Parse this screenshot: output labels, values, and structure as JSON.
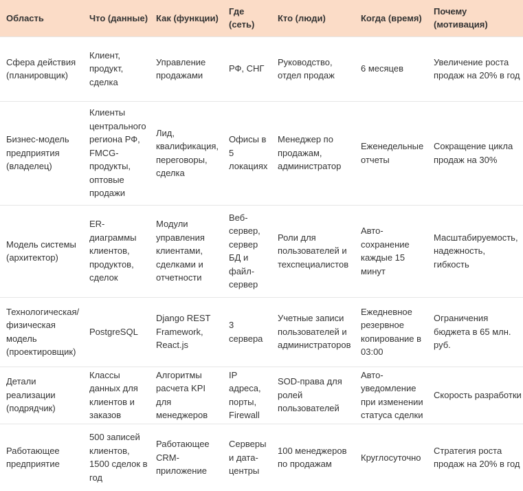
{
  "table": {
    "headers": [
      "Область",
      "Что (данные)",
      "Как (функции)",
      "Где (сеть)",
      "Кто (люди)",
      "Когда (время)",
      "Почему (мотивация)"
    ],
    "rows": [
      [
        "Сфера действия (планировщик)",
        "Клиент, продукт, сделка",
        "Управление продажами",
        "РФ, СНГ",
        "Руководство, отдел продаж",
        "6 месяцев",
        "Увеличение роста продаж на 20% в год"
      ],
      [
        "Бизнес-модель предприятия (владелец)",
        "Клиенты центрального региона РФ, FMCG-продукты, оптовые продажи",
        "Лид, квалификация, переговоры, сделка",
        "Офисы в 5 локациях",
        "Менеджер по продажам, администратор",
        "Еженедельные отчеты",
        "Сокращение цикла продаж на 30%"
      ],
      [
        "Модель системы (архитектор)",
        "ER-диаграммы клиентов, продуктов, сделок",
        "Модули управления клиентами, сделками и отчетности",
        "Веб-сервер, сервер БД и файл-сервер",
        "Роли для пользователей и техспециалистов",
        "Авто-сохранение каждые 15 минут",
        "Масштабируемость, надежность, гибкость"
      ],
      [
        "Технологическая/ физическая модель (проектировщик)",
        "PostgreSQL",
        "Django REST Framework, React.js",
        "3 сервера",
        "Учетные записи пользователей и администраторов",
        "Ежедневное резервное копирование в 03:00",
        "Ограничения бюджета в 65 млн. руб."
      ],
      [
        "Детали реализации (подрядчик)",
        "Классы данных для клиентов и заказов",
        "Алгоритмы расчета KPI для менеджеров",
        "IP адреса, порты, Firewall",
        "SOD-права для ролей пользователей",
        "Авто-уведомление при изменении статуса сделки",
        "Скорость разработки"
      ],
      [
        "Работающее предприятие",
        "500 записей клиентов, 1500 сделок в год",
        "Работающее CRM-приложение",
        "Серверы и дата-центры",
        "100 менеджеров по продажам",
        "Круглосуточно",
        "Стратегия роста продаж на 20% в год"
      ]
    ]
  },
  "colors": {
    "header_background": "#fbdcc7",
    "row_divider": "#e6e6e6",
    "text": "#333333"
  }
}
